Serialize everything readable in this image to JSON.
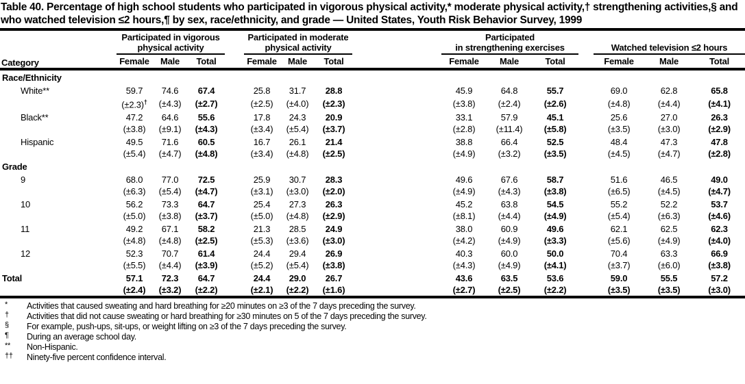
{
  "title": "Table 40. Percentage of high school students who participated in vigorous physical activity,* moderate physical activity,† strengthening activities,§ and who watched television ≤2 hours,¶ by sex, race/ethnicity, and grade — United States, Youth Risk Behavior Survey, 1999",
  "table": {
    "category_label": "Category",
    "groups": [
      {
        "line1": "Participated in vigorous",
        "line2": "physical activity"
      },
      {
        "line1": "Participated in moderate",
        "line2": "physical activity"
      },
      {
        "line1": "Participated",
        "line2": "in strengthening exercises"
      },
      {
        "line1": "",
        "line2": "Watched television ≤2 hours"
      }
    ],
    "subcolumns": [
      "Female",
      "Male",
      "Total"
    ],
    "rows": [
      {
        "kind": "section",
        "label": "Race/Ethnicity"
      },
      {
        "kind": "data",
        "label": "White**",
        "indent": true,
        "values": [
          "59.7",
          "74.6",
          "67.4",
          "25.8",
          "31.7",
          "28.8",
          "45.9",
          "64.8",
          "55.7",
          "69.0",
          "62.8",
          "65.8"
        ],
        "ci": [
          "(±2.3)†",
          "(±4.3)",
          "(±2.7)",
          "(±2.5)",
          "(±4.0)",
          "(±2.3)",
          "(±3.8)",
          "(±2.4)",
          "(±2.6)",
          "(±4.8)",
          "(±4.4)",
          "(±4.1)"
        ]
      },
      {
        "kind": "data",
        "label": "Black**",
        "indent": true,
        "values": [
          "47.2",
          "64.6",
          "55.6",
          "17.8",
          "24.3",
          "20.9",
          "33.1",
          "57.9",
          "45.1",
          "25.6",
          "27.0",
          "26.3"
        ],
        "ci": [
          "(±3.8)",
          "(±9.1)",
          "(±4.3)",
          "(±3.4)",
          "(±5.4)",
          "(±3.7)",
          "(±2.8)",
          "(±11.4)",
          "(±5.8)",
          "(±3.5)",
          "(±3.0)",
          "(±2.9)"
        ]
      },
      {
        "kind": "data",
        "label": "Hispanic",
        "indent": true,
        "values": [
          "49.5",
          "71.6",
          "60.5",
          "16.7",
          "26.1",
          "21.4",
          "38.8",
          "66.4",
          "52.5",
          "48.4",
          "47.3",
          "47.8"
        ],
        "ci": [
          "(±5.4)",
          "(±4.7)",
          "(±4.8)",
          "(±3.4)",
          "(±4.8)",
          "(±2.5)",
          "(±4.9)",
          "(±3.2)",
          "(±3.5)",
          "(±4.5)",
          "(±4.7)",
          "(±2.8)"
        ]
      },
      {
        "kind": "section",
        "label": "Grade"
      },
      {
        "kind": "data",
        "label": "9",
        "indent": true,
        "values": [
          "68.0",
          "77.0",
          "72.5",
          "25.9",
          "30.7",
          "28.3",
          "49.6",
          "67.6",
          "58.7",
          "51.6",
          "46.5",
          "49.0"
        ],
        "ci": [
          "(±6.3)",
          "(±5.4)",
          "(±4.7)",
          "(±3.1)",
          "(±3.0)",
          "(±2.0)",
          "(±4.9)",
          "(±4.3)",
          "(±3.8)",
          "(±6.5)",
          "(±4.5)",
          "(±4.7)"
        ]
      },
      {
        "kind": "data",
        "label": "10",
        "indent": true,
        "values": [
          "56.2",
          "73.3",
          "64.7",
          "25.4",
          "27.3",
          "26.3",
          "45.2",
          "63.8",
          "54.5",
          "55.2",
          "52.2",
          "53.7"
        ],
        "ci": [
          "(±5.0)",
          "(±3.8)",
          "(±3.7)",
          "(±5.0)",
          "(±4.8)",
          "(±2.9)",
          "(±8.1)",
          "(±4.4)",
          "(±4.9)",
          "(±5.4)",
          "(±6.3)",
          "(±4.6)"
        ]
      },
      {
        "kind": "data",
        "label": "11",
        "indent": true,
        "values": [
          "49.2",
          "67.1",
          "58.2",
          "21.3",
          "28.5",
          "24.9",
          "38.0",
          "60.9",
          "49.6",
          "62.1",
          "62.5",
          "62.3"
        ],
        "ci": [
          "(±4.8)",
          "(±4.8)",
          "(±2.5)",
          "(±5.3)",
          "(±3.6)",
          "(±3.0)",
          "(±4.2)",
          "(±4.9)",
          "(±3.3)",
          "(±5.6)",
          "(±4.9)",
          "(±4.0)"
        ]
      },
      {
        "kind": "data",
        "label": "12",
        "indent": true,
        "values": [
          "52.3",
          "70.7",
          "61.4",
          "24.4",
          "29.4",
          "26.9",
          "40.3",
          "60.0",
          "50.0",
          "70.4",
          "63.3",
          "66.9"
        ],
        "ci": [
          "(±5.5)",
          "(±4.4)",
          "(±3.9)",
          "(±5.2)",
          "(±5.4)",
          "(±3.8)",
          "(±4.3)",
          "(±4.9)",
          "(±4.1)",
          "(±3.7)",
          "(±6.0)",
          "(±3.8)"
        ]
      },
      {
        "kind": "data",
        "label": "Total",
        "bold": true,
        "values": [
          "57.1",
          "72.3",
          "64.7",
          "24.4",
          "29.0",
          "26.7",
          "43.6",
          "63.5",
          "53.6",
          "59.0",
          "55.5",
          "57.2"
        ],
        "ci": [
          "(±2.4)",
          "(±3.2)",
          "(±2.2)",
          "(±2.1)",
          "(±2.2)",
          "(±1.6)",
          "(±2.7)",
          "(±2.5)",
          "(±2.2)",
          "(±3.5)",
          "(±3.5)",
          "(±3.0)"
        ]
      }
    ]
  },
  "footnotes": [
    {
      "marker": "*",
      "text": "Activities that caused sweating and hard breathing for ≥20 minutes on ≥3 of the 7 days preceding the survey."
    },
    {
      "marker": "†",
      "text": "Activities that did not cause sweating or hard breathing for ≥30 minutes on 5 of the 7 days preceding the survey."
    },
    {
      "marker": "§",
      "text": "For example, push-ups, sit-ups, or weight lifting on ≥3 of the 7 days preceding the survey."
    },
    {
      "marker": "¶",
      "text": "During an average school day."
    },
    {
      "marker": "**",
      "text": "Non-Hispanic."
    },
    {
      "marker": "††",
      "text": "Ninety-five percent confidence interval."
    }
  ]
}
